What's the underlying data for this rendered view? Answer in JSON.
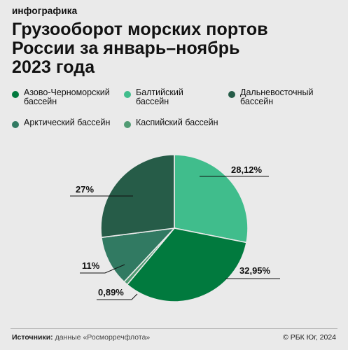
{
  "header": {
    "kicker": "инфографика",
    "title_lines": [
      "Грузооборот морских портов",
      "России за январь–ноябрь",
      "2023 года"
    ]
  },
  "colors": {
    "background": "#eaeaea",
    "azov_black_sea": "#017a3e",
    "baltic": "#40bd8c",
    "far_east": "#265c48",
    "arctic": "#317a62",
    "caspian": "#519b73"
  },
  "chart_data": {
    "type": "pie",
    "title": "Грузооборот морских портов России за январь–ноябрь 2023 года",
    "unit": "%",
    "series": [
      {
        "name": "Азово-Черноморский бассейн",
        "value": 32.95,
        "label": "32,95%",
        "color": "#017a3e"
      },
      {
        "name": "Балтийский бассейн",
        "value": 28.12,
        "label": "28,12%",
        "color": "#40bd8c"
      },
      {
        "name": "Дальневосточный бассейн",
        "value": 27,
        "label": "27%",
        "color": "#265c48"
      },
      {
        "name": "Арктический бассейн",
        "value": 11,
        "label": "11%",
        "color": "#317a62"
      },
      {
        "name": "Каспийский бассейн",
        "value": 0.89,
        "label": "0,89%",
        "color": "#519b73"
      }
    ],
    "legend_position": "top"
  },
  "legend": [
    {
      "label": "Азово-Черноморский\nбассейн",
      "color": "#017a3e"
    },
    {
      "label": "Балтийский\nбассейн",
      "color": "#40bd8c"
    },
    {
      "label": "Дальневосточный\nбассейн",
      "color": "#265c48"
    },
    {
      "label": "Арктический бассейн",
      "color": "#317a62"
    },
    {
      "label": "Каспийский бассейн",
      "color": "#519b73"
    }
  ],
  "footer": {
    "source_label": "Источники:",
    "source_text": " данные «Росморречфлота»",
    "copyright": "© РБК Юг, 2024"
  }
}
